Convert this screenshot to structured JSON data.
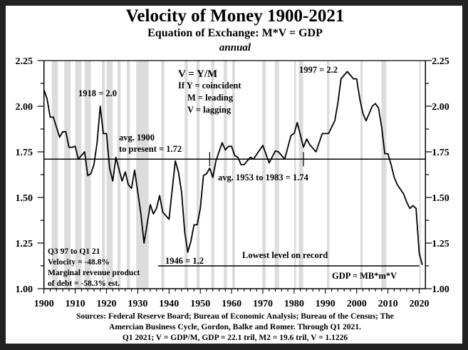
{
  "chart_data": {
    "type": "line",
    "title": "Velocity of Money 1900-2021",
    "subtitle": "Equation of Exchange: M*V = GDP",
    "frequency_label": "annual",
    "xlim": [
      1900,
      2022
    ],
    "ylim": [
      1.0,
      2.25
    ],
    "x_ticks": [
      "1900",
      "1910",
      "1920",
      "1930",
      "1940",
      "1950",
      "1960",
      "1970",
      "1980",
      "1990",
      "2000",
      "2010",
      "2020"
    ],
    "y_ticks": [
      "1.00",
      "1.25",
      "1.50",
      "1.75",
      "2.00",
      "2.25"
    ],
    "y_axis_sides": "left and right",
    "recession_shading": true,
    "colors": {
      "line": "#000000",
      "recession": "#dcdcdc",
      "background": "#ffffff",
      "frame": "#222222"
    },
    "recessions": [
      [
        1902.5,
        1904.5
      ],
      [
        1906.5,
        1908.5
      ],
      [
        1910,
        1912
      ],
      [
        1913,
        1915
      ],
      [
        1918.5,
        1919.5
      ],
      [
        1920,
        1922
      ],
      [
        1923.5,
        1924.5
      ],
      [
        1926.5,
        1927.5
      ],
      [
        1929.5,
        1933.5
      ],
      [
        1937.5,
        1938.5
      ],
      [
        1945,
        1946
      ],
      [
        1948.8,
        1949.8
      ],
      [
        1953.5,
        1954.5
      ],
      [
        1957.5,
        1958.5
      ],
      [
        1960.2,
        1961.1
      ],
      [
        1969.8,
        1970.9
      ],
      [
        1973.8,
        1975.2
      ],
      [
        1980,
        1980.6
      ],
      [
        1981.5,
        1982.9
      ],
      [
        1990.5,
        1991.3
      ],
      [
        2001.2,
        2001.9
      ],
      [
        2007.9,
        2009.5
      ],
      [
        2020,
        2020.5
      ]
    ],
    "series": [
      {
        "x": [
          1900,
          1901,
          1902,
          1903,
          1905,
          1906,
          1907,
          1908,
          1909,
          1910,
          1911,
          1913,
          1914,
          1915,
          1916,
          1917,
          1918,
          1919,
          1920,
          1921,
          1922,
          1923,
          1925,
          1926,
          1927,
          1928,
          1929,
          1931,
          1932,
          1934,
          1935,
          1936,
          1937,
          1938,
          1940,
          1942,
          1943,
          1944,
          1945,
          1946,
          1947,
          1948,
          1949,
          1950,
          1951,
          1952,
          1953,
          1954,
          1955,
          1956,
          1957,
          1958,
          1959,
          1960,
          1961,
          1962,
          1963,
          1964,
          1966,
          1967,
          1968,
          1970,
          1972,
          1974,
          1975,
          1977,
          1979,
          1980,
          1981,
          1983,
          1984,
          1985,
          1987,
          1989,
          1991,
          1993,
          1994,
          1995,
          1997,
          1999,
          2000,
          2001,
          2002,
          2003,
          2004,
          2005,
          2006,
          2007,
          2008,
          2009,
          2010,
          2011,
          2012,
          2013,
          2015,
          2016,
          2017,
          2018,
          2019,
          2020,
          2021
        ],
        "y": [
          2.09,
          2.04,
          1.94,
          1.94,
          1.83,
          1.86,
          1.86,
          1.775,
          1.775,
          1.78,
          1.71,
          1.75,
          1.62,
          1.63,
          1.68,
          1.8,
          2.0,
          1.85,
          1.85,
          1.66,
          1.59,
          1.72,
          1.59,
          1.64,
          1.57,
          1.55,
          1.65,
          1.41,
          1.25,
          1.46,
          1.41,
          1.44,
          1.51,
          1.42,
          1.38,
          1.7,
          1.64,
          1.53,
          1.31,
          1.2,
          1.26,
          1.35,
          1.35,
          1.44,
          1.62,
          1.63,
          1.66,
          1.61,
          1.7,
          1.75,
          1.8,
          1.76,
          1.78,
          1.78,
          1.73,
          1.72,
          1.68,
          1.68,
          1.72,
          1.71,
          1.735,
          1.785,
          1.69,
          1.755,
          1.75,
          1.71,
          1.84,
          1.85,
          1.91,
          1.775,
          1.82,
          1.79,
          1.75,
          1.85,
          1.85,
          1.92,
          2.02,
          2.15,
          2.19,
          2.15,
          2.15,
          2.04,
          1.96,
          1.92,
          1.96,
          2.0,
          2.015,
          1.99,
          1.885,
          1.74,
          1.74,
          1.68,
          1.61,
          1.57,
          1.52,
          1.475,
          1.44,
          1.455,
          1.44,
          1.195,
          1.13
        ]
      }
    ],
    "reference_lines": [
      {
        "value": 1.71,
        "from": 1900,
        "to": 2022
      },
      {
        "value": 1.125,
        "from": 1936.5,
        "to": 2020
      }
    ],
    "period_markers": [
      1953,
      1983
    ],
    "annotations": {
      "formula": "V = Y/M",
      "if_y": "If Y = coincident",
      "m_leading": "M = leading",
      "v_lagging": "V = lagging",
      "peak_1918": "1918 = 2.0",
      "avg_line1": "avg. 1900",
      "avg_line2": "to present = 1.72",
      "avg_1953_1983": "avg. 1953 to 1983 = 1.74",
      "peak_1997": "1997 = 2.2",
      "low_1946": "1946 = 1.2",
      "lowest": "Lowest level on record",
      "gdp_formula": "GDP = MB*m*V",
      "q_line1": "Q3 97 to Q1 21",
      "q_line2": "Velocity =  -48.8%",
      "q_line3": "Marginal revenue product",
      "q_line4": "of debt = -58.3% est."
    },
    "sources": [
      "Sources: Federal Reserve Board; Bureau of Economic Analysis; Bureau of the Census; The",
      "Amercian Business Cycle, Gordon, Balke and Romer.   Through Q1 2021.",
      "Q1 2021; V = GDP/M, GDP = 22.1 tril, M2 = 19.6 tril, V = 1.1226"
    ]
  }
}
